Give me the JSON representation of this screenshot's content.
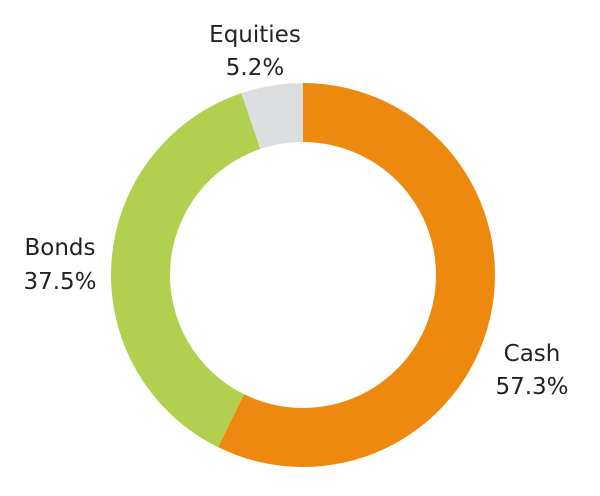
{
  "chart_data": {
    "type": "pie",
    "variant": "donut",
    "title": "",
    "start": "12 o'clock",
    "direction": "clockwise",
    "slices": [
      {
        "name": "Cash",
        "value": 57.3,
        "label": "57.3%",
        "color": "#ee8910"
      },
      {
        "name": "Bonds",
        "value": 37.5,
        "label": "37.5%",
        "color": "#b2cf4f"
      },
      {
        "name": "Equities",
        "value": 5.2,
        "label": "5.2%",
        "color": "#dcdddf"
      }
    ]
  }
}
